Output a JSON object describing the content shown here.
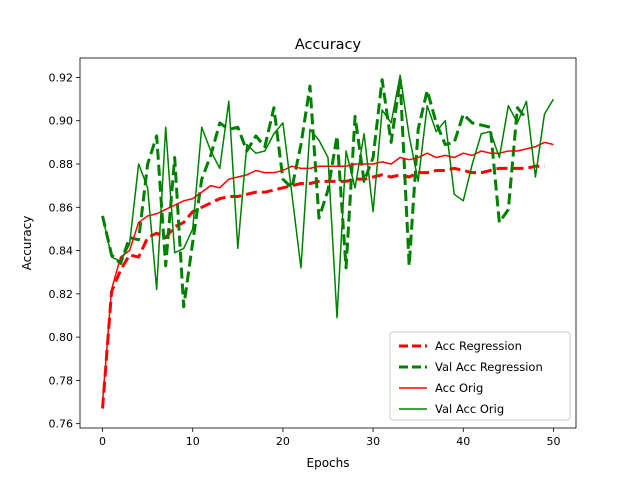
{
  "chart_data": {
    "type": "line",
    "title": "Accuracy",
    "xlabel": "Epochs",
    "ylabel": "Accuracy",
    "xlim": [
      -2.5,
      52.5
    ],
    "ylim": [
      0.758,
      0.929
    ],
    "xticks": [
      0,
      10,
      20,
      30,
      40,
      50
    ],
    "xtick_labels": [
      "0",
      "10",
      "20",
      "30",
      "40",
      "50"
    ],
    "yticks": [
      0.76,
      0.78,
      0.8,
      0.82,
      0.84,
      0.86,
      0.88,
      0.9,
      0.92
    ],
    "ytick_labels": [
      "0.76",
      "0.78",
      "0.80",
      "0.82",
      "0.84",
      "0.86",
      "0.88",
      "0.90",
      "0.92"
    ],
    "grid": false,
    "legend_position": "lower right",
    "series": [
      {
        "name": "Acc Regression",
        "color": "#ff0000",
        "style": "dashed",
        "width": 3,
        "x": [
          0,
          1,
          2,
          3,
          4,
          5,
          6,
          7,
          8,
          9,
          10,
          11,
          12,
          13,
          14,
          15,
          16,
          17,
          18,
          19,
          20,
          21,
          22,
          23,
          24,
          25,
          26,
          27,
          28,
          29,
          30,
          31,
          32,
          33,
          34,
          35,
          36,
          37,
          38,
          39,
          40,
          41,
          42,
          43,
          44,
          45,
          46,
          47,
          48,
          49
        ],
        "y": [
          0.767,
          0.821,
          0.831,
          0.838,
          0.837,
          0.846,
          0.848,
          0.846,
          0.851,
          0.853,
          0.858,
          0.86,
          0.862,
          0.864,
          0.865,
          0.865,
          0.866,
          0.867,
          0.867,
          0.868,
          0.869,
          0.87,
          0.871,
          0.871,
          0.872,
          0.872,
          0.872,
          0.872,
          0.873,
          0.873,
          0.874,
          0.875,
          0.874,
          0.875,
          0.874,
          0.876,
          0.876,
          0.877,
          0.877,
          0.878,
          0.877,
          0.876,
          0.876,
          0.877,
          0.878,
          0.878,
          0.878,
          0.878,
          0.879,
          0.879
        ]
      },
      {
        "name": "Val Acc Regression",
        "color": "#008000",
        "style": "dashed",
        "width": 3,
        "x": [
          0,
          1,
          2,
          3,
          4,
          5,
          6,
          7,
          8,
          9,
          10,
          11,
          12,
          13,
          14,
          15,
          16,
          17,
          18,
          19,
          20,
          21,
          22,
          23,
          24,
          25,
          26,
          27,
          28,
          29,
          30,
          31,
          32,
          33,
          34,
          35,
          36,
          37,
          38,
          39,
          40,
          41,
          42,
          43,
          44,
          45,
          46,
          47
        ],
        "y": [
          0.856,
          0.838,
          0.834,
          0.846,
          0.845,
          0.88,
          0.893,
          0.833,
          0.883,
          0.814,
          0.844,
          0.873,
          0.884,
          0.899,
          0.896,
          0.897,
          0.886,
          0.893,
          0.888,
          0.906,
          0.873,
          0.869,
          0.889,
          0.916,
          0.855,
          0.868,
          0.893,
          0.832,
          0.902,
          0.872,
          0.883,
          0.919,
          0.89,
          0.919,
          0.833,
          0.896,
          0.914,
          0.899,
          0.889,
          0.89,
          0.903,
          0.899,
          0.898,
          0.897,
          0.853,
          0.859,
          0.906,
          0.901
        ]
      },
      {
        "name": "Acc Orig",
        "color": "#ff0000",
        "style": "solid",
        "width": 1.5,
        "x": [
          0,
          1,
          2,
          3,
          4,
          5,
          6,
          7,
          8,
          9,
          10,
          11,
          12,
          13,
          14,
          15,
          16,
          17,
          18,
          19,
          20,
          21,
          22,
          23,
          24,
          25,
          26,
          27,
          28,
          29,
          30,
          31,
          32,
          33,
          34,
          35,
          36,
          37,
          38,
          39,
          40,
          41,
          42,
          43,
          44,
          45,
          46,
          47,
          48,
          49,
          50
        ],
        "y": [
          0.77,
          0.822,
          0.837,
          0.84,
          0.853,
          0.856,
          0.857,
          0.859,
          0.861,
          0.863,
          0.864,
          0.867,
          0.87,
          0.869,
          0.873,
          0.874,
          0.875,
          0.877,
          0.876,
          0.876,
          0.877,
          0.879,
          0.878,
          0.878,
          0.879,
          0.879,
          0.879,
          0.879,
          0.88,
          0.88,
          0.88,
          0.881,
          0.88,
          0.883,
          0.882,
          0.883,
          0.885,
          0.883,
          0.884,
          0.883,
          0.885,
          0.884,
          0.886,
          0.885,
          0.885,
          0.886,
          0.886,
          0.887,
          0.888,
          0.89,
          0.889
        ]
      },
      {
        "name": "Val Acc Orig",
        "color": "#008000",
        "style": "solid",
        "width": 1.5,
        "x": [
          0,
          1,
          2,
          3,
          4,
          5,
          6,
          7,
          8,
          9,
          10,
          11,
          12,
          13,
          14,
          15,
          16,
          17,
          18,
          19,
          20,
          21,
          22,
          23,
          24,
          25,
          26,
          27,
          28,
          29,
          30,
          31,
          32,
          33,
          34,
          35,
          36,
          37,
          38,
          39,
          40,
          41,
          42,
          43,
          44,
          45,
          46,
          47,
          48,
          49,
          50
        ],
        "y": [
          0.856,
          0.837,
          0.835,
          0.843,
          0.88,
          0.869,
          0.822,
          0.897,
          0.839,
          0.841,
          0.85,
          0.897,
          0.886,
          0.878,
          0.909,
          0.841,
          0.889,
          0.885,
          0.886,
          0.894,
          0.899,
          0.866,
          0.832,
          0.896,
          0.891,
          0.883,
          0.809,
          0.886,
          0.869,
          0.894,
          0.858,
          0.905,
          0.899,
          0.921,
          0.893,
          0.872,
          0.907,
          0.895,
          0.9,
          0.866,
          0.863,
          0.88,
          0.894,
          0.895,
          0.883,
          0.907,
          0.899,
          0.909,
          0.874,
          0.903,
          0.91
        ]
      }
    ]
  }
}
